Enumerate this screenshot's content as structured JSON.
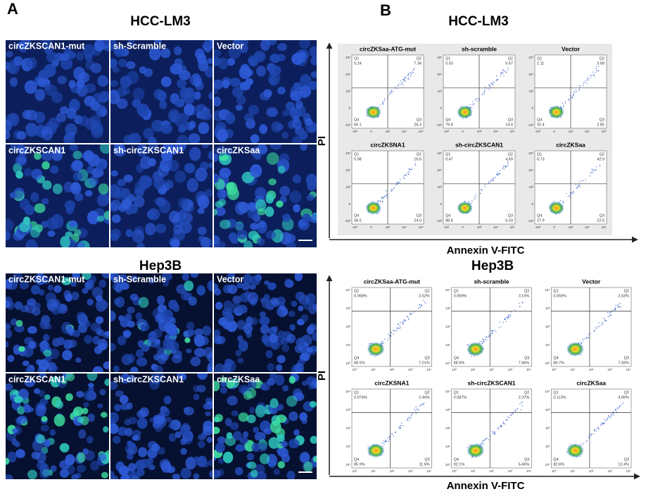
{
  "panel_a": {
    "label": "A",
    "groups": [
      {
        "title": "HCC-LM3",
        "images": [
          "circZKSCAN1-mut",
          "sh-Scramble",
          "Vector",
          "circZKSCAN1",
          "sh-circZKSCAN1",
          "circZKSaa"
        ]
      },
      {
        "title": "Hep3B",
        "images": [
          "circZKSCAN1-mut",
          "sh-Scramble",
          "Vector",
          "circZKSCAN1",
          "sh-circZKSCAN1",
          "circZKSaa"
        ]
      }
    ]
  },
  "panel_b": {
    "label": "B",
    "groups": [
      {
        "title": "HCC-LM3",
        "y_axis": "PI",
        "x_axis": "Annexin V-FITC",
        "quadrant_names": [
          "Q1",
          "Q2",
          "Q3",
          "Q4"
        ],
        "yticks": [
          "10⁵",
          "10⁴",
          "10³",
          "0",
          "-10³"
        ],
        "xticks": [
          "-10³",
          "0",
          "10³",
          "10⁴",
          "10⁵"
        ],
        "plots": [
          {
            "title": "circZKSaa-ATG-mut",
            "quadrants": [
              "0.24",
              "7.34",
              "26.3",
              "66.1"
            ]
          },
          {
            "title": "sh-scramble",
            "quadrants": [
              "0.53",
              "5.67",
              "14.4",
              "79.4"
            ]
          },
          {
            "title": "Vector",
            "quadrants": [
              "1.11",
              "3.68",
              "2.85",
              "92.4"
            ]
          },
          {
            "title": "circZKSNA1",
            "quadrants": [
              "0.98",
              "16.6",
              "24.0",
              "58.5"
            ]
          },
          {
            "title": "sh-circZKSCAN1",
            "quadrants": [
              "0.47",
              "4.69",
              "6.03",
              "88.8"
            ]
          },
          {
            "title": "circZKSaa",
            "quadrants": [
              "6.73",
              "42.9",
              "22.5",
              "27.9"
            ]
          }
        ]
      },
      {
        "title": "Hep3B",
        "y_axis": "PI",
        "x_axis": "Annexin V-FITC",
        "quadrant_names": [
          "Q1",
          "Q2",
          "Q3",
          "Q4"
        ],
        "yticks": [
          "10⁴",
          "10³",
          "10²",
          "10¹",
          "10⁰"
        ],
        "xticks": [
          "10⁰",
          "10¹",
          "10²",
          "10³",
          "10⁴"
        ],
        "plots": [
          {
            "title": "circZKSaa-ATG-mut",
            "quadrants": [
              "0.068%",
              "3.62%",
              "7.01%",
              "88.5%"
            ]
          },
          {
            "title": "sh-scramble",
            "quadrants": [
              "0.069%",
              "3.15%",
              "7.86%",
              "88.9%"
            ]
          },
          {
            "title": "Vector",
            "quadrants": [
              "0.059%",
              "2.63%",
              "7.59%",
              "89.7%"
            ]
          },
          {
            "title": "circZKSNA1",
            "quadrants": [
              "0.074%",
              "2.46%",
              "11.6%",
              "85.9%"
            ]
          },
          {
            "title": "sh-circZKSCAN1",
            "quadrants": [
              "0.087%",
              "2.37%",
              "5.45%",
              "92.1%"
            ]
          },
          {
            "title": "circZKSaa",
            "quadrants": [
              "0.113%",
              "4.89%",
              "12.4%",
              "82.6%"
            ]
          }
        ]
      }
    ]
  }
}
